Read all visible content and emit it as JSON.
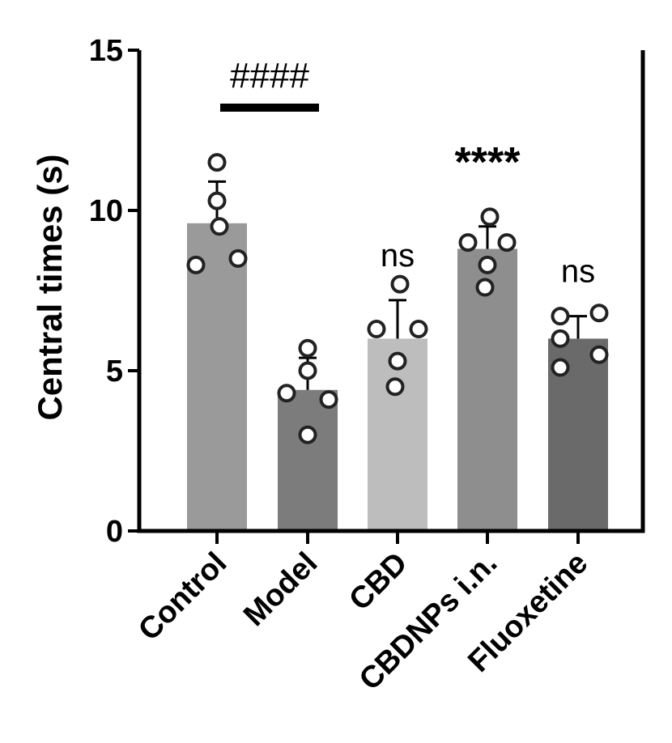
{
  "chart_data": {
    "type": "bar",
    "categories": [
      "Control",
      "Model",
      "CBD",
      "CBDNPs i.n.",
      "Fluoxetine"
    ],
    "values": [
      9.6,
      4.4,
      6.0,
      8.8,
      6.0
    ],
    "errors": [
      1.3,
      1.0,
      1.2,
      0.7,
      0.7
    ],
    "points": [
      [
        11.5,
        10.3,
        9.5,
        8.3,
        8.5
      ],
      [
        5.7,
        5.0,
        4.3,
        4.1,
        3.0
      ],
      [
        7.7,
        6.3,
        6.3,
        5.3,
        4.5
      ],
      [
        9.8,
        9.0,
        9.0,
        8.3,
        7.6
      ],
      [
        6.7,
        6.8,
        6.0,
        5.5,
        5.1
      ]
    ],
    "bar_colors": [
      "#9a9a9a",
      "#7c7c7c",
      "#bdbdbd",
      "#8e8e8e",
      "#6a6a6a"
    ],
    "title": "",
    "xlabel": "",
    "ylabel": "Central times (s)",
    "ylim": [
      0,
      15
    ],
    "yticks": [
      "0",
      "5",
      "10",
      "15"
    ],
    "annotations": [
      "",
      "",
      "ns",
      "****",
      "ns"
    ],
    "comparison": {
      "label": "####",
      "from": "Control",
      "to": "Model"
    },
    "grid": false
  }
}
